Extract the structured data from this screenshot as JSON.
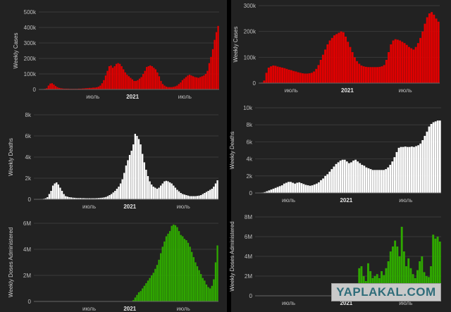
{
  "watermark": "YAPLAKAL.COM",
  "chart_data": [
    {
      "type": "bar",
      "id": "left-cases",
      "ylabel": "Weekly Cases",
      "color": "#e00000",
      "yticks": [
        0,
        100000,
        200000,
        300000,
        400000,
        500000
      ],
      "ytick_labels": [
        "0",
        "100k",
        "200k",
        "300k",
        "400k",
        "500k"
      ],
      "ylim": [
        0,
        500000
      ],
      "xlabels": [
        {
          "label": "июль",
          "x": 0.3
        },
        {
          "label": "2021",
          "x": 0.52,
          "bold": true
        },
        {
          "label": "июль",
          "x": 0.81
        }
      ],
      "values": [
        0,
        1000,
        2000,
        4000,
        8000,
        25000,
        38000,
        40000,
        32000,
        22000,
        15000,
        10000,
        8000,
        6000,
        5000,
        5000,
        5000,
        4000,
        4000,
        4000,
        4000,
        4000,
        5000,
        5000,
        6000,
        7000,
        8000,
        9000,
        10000,
        10000,
        12000,
        12000,
        14000,
        18000,
        25000,
        40000,
        60000,
        90000,
        120000,
        150000,
        155000,
        140000,
        150000,
        165000,
        170000,
        165000,
        150000,
        130000,
        110000,
        95000,
        85000,
        75000,
        65000,
        55000,
        55000,
        60000,
        70000,
        80000,
        100000,
        120000,
        145000,
        150000,
        155000,
        150000,
        140000,
        130000,
        110000,
        85000,
        55000,
        35000,
        25000,
        18000,
        15000,
        15000,
        15000,
        17000,
        20000,
        25000,
        35000,
        45000,
        60000,
        70000,
        80000,
        90000,
        95000,
        90000,
        85000,
        80000,
        78000,
        75000,
        80000,
        85000,
        90000,
        100000,
        120000,
        170000,
        210000,
        260000,
        320000,
        370000,
        410000
      ]
    },
    {
      "type": "bar",
      "id": "right-cases",
      "ylabel": "Weekly Cases",
      "color": "#e00000",
      "yticks": [
        0,
        100000,
        200000,
        300000
      ],
      "ytick_labels": [
        "0",
        "100k",
        "200k",
        "300k"
      ],
      "ylim": [
        0,
        300000
      ],
      "xlabels": [
        {
          "label": "июль",
          "x": 0.18
        },
        {
          "label": "2021",
          "x": 0.49,
          "bold": true
        },
        {
          "label": "июль",
          "x": 0.81
        }
      ],
      "values": [
        0,
        2000,
        10000,
        40000,
        60000,
        65000,
        68000,
        67000,
        64000,
        62000,
        60000,
        58000,
        55000,
        52000,
        50000,
        47000,
        45000,
        42000,
        40000,
        38000,
        37000,
        37000,
        38000,
        40000,
        45000,
        55000,
        70000,
        90000,
        110000,
        130000,
        150000,
        165000,
        175000,
        185000,
        190000,
        195000,
        200000,
        197000,
        180000,
        160000,
        140000,
        120000,
        100000,
        85000,
        75000,
        68000,
        65000,
        63000,
        62000,
        62000,
        62000,
        62000,
        62000,
        63000,
        65000,
        70000,
        90000,
        120000,
        150000,
        165000,
        170000,
        168000,
        165000,
        160000,
        155000,
        148000,
        140000,
        135000,
        130000,
        140000,
        155000,
        175000,
        200000,
        230000,
        255000,
        270000,
        275000,
        265000,
        250000,
        238000
      ]
    },
    {
      "type": "bar",
      "id": "left-deaths",
      "ylabel": "Weekly Deaths",
      "color": "#ffffff",
      "yticks": [
        0,
        2000,
        4000,
        6000,
        8000
      ],
      "ytick_labels": [
        "0",
        "2k",
        "4k",
        "6k",
        "8k"
      ],
      "ylim": [
        0,
        8000
      ],
      "xlabels": [
        {
          "label": "июль",
          "x": 0.3
        },
        {
          "label": "2021",
          "x": 0.52,
          "bold": true
        },
        {
          "label": "июль",
          "x": 0.81
        }
      ],
      "values": [
        0,
        0,
        0,
        0,
        20,
        50,
        100,
        200,
        500,
        800,
        1300,
        1500,
        1600,
        1400,
        1100,
        800,
        500,
        300,
        250,
        200,
        180,
        150,
        140,
        120,
        120,
        120,
        110,
        110,
        100,
        100,
        100,
        100,
        100,
        100,
        110,
        120,
        140,
        150,
        180,
        220,
        300,
        400,
        500,
        650,
        800,
        1000,
        1200,
        1500,
        1900,
        2500,
        3200,
        3700,
        4200,
        4600,
        5200,
        6200,
        6000,
        5700,
        5200,
        4300,
        3500,
        2800,
        2200,
        1700,
        1400,
        1200,
        1100,
        1000,
        1100,
        1300,
        1500,
        1700,
        1750,
        1700,
        1600,
        1500,
        1300,
        1100,
        900,
        750,
        600,
        500,
        450,
        400,
        350,
        300,
        300,
        300,
        300,
        320,
        350,
        400,
        500,
        600,
        700,
        800,
        900,
        1000,
        1200,
        1500,
        1800
      ]
    },
    {
      "type": "bar",
      "id": "right-deaths",
      "ylabel": "Weekly Deaths",
      "color": "#ffffff",
      "yticks": [
        0,
        2000,
        4000,
        6000,
        8000,
        10000
      ],
      "ytick_labels": [
        "0",
        "2k",
        "4k",
        "6k",
        "8k",
        "10k"
      ],
      "ylim": [
        0,
        10000
      ],
      "xlabels": [
        {
          "label": "июль",
          "x": 0.18
        },
        {
          "label": "2021",
          "x": 0.49,
          "bold": true
        },
        {
          "label": "июль",
          "x": 0.81
        }
      ],
      "values": [
        0,
        0,
        0,
        50,
        100,
        200,
        300,
        400,
        500,
        600,
        700,
        800,
        900,
        1100,
        1200,
        1300,
        1300,
        1200,
        1100,
        1200,
        1250,
        1150,
        1050,
        950,
        900,
        850,
        900,
        1000,
        1100,
        1250,
        1500,
        1700,
        2000,
        2200,
        2500,
        2800,
        3100,
        3400,
        3600,
        3800,
        3900,
        3900,
        3700,
        3500,
        3600,
        3800,
        3900,
        3700,
        3500,
        3300,
        3200,
        3000,
        2900,
        2800,
        2700,
        2700,
        2700,
        2700,
        2700,
        2700,
        2800,
        3000,
        3300,
        3700,
        4200,
        4800,
        5300,
        5400,
        5400,
        5450,
        5400,
        5400,
        5450,
        5400,
        5500,
        5600,
        5800,
        6200,
        6700,
        7200,
        7800,
        8100,
        8300,
        8400,
        8500,
        8500
      ]
    },
    {
      "type": "bar",
      "id": "left-doses",
      "ylabel": "Weekly Doses Administered",
      "color": "#2fa800",
      "yticks": [
        0,
        2000000,
        4000000,
        6000000
      ],
      "ytick_labels": [
        "0",
        "2M",
        "4M",
        "6M"
      ],
      "ylim": [
        0,
        6000000
      ],
      "xlabels": [
        {
          "label": "июль",
          "x": 0.3
        },
        {
          "label": "2021",
          "x": 0.52,
          "bold": true
        },
        {
          "label": "июль",
          "x": 0.81
        }
      ],
      "values": [
        0,
        0,
        0,
        0,
        0,
        0,
        0,
        0,
        0,
        0,
        0,
        0,
        0,
        0,
        0,
        0,
        0,
        0,
        0,
        0,
        0,
        0,
        0,
        0,
        0,
        0,
        0,
        0,
        0,
        0,
        0,
        0,
        0,
        0,
        0,
        0,
        0,
        0,
        0,
        0,
        0,
        0,
        0,
        0,
        0,
        0,
        0,
        0,
        0,
        0,
        0,
        0,
        0,
        0,
        100000,
        300000,
        500000,
        700000,
        800000,
        1000000,
        1200000,
        1400000,
        1600000,
        1800000,
        2000000,
        2200000,
        2500000,
        2800000,
        3200000,
        3700000,
        4200000,
        4600000,
        5000000,
        5200000,
        5400000,
        5800000,
        5900000,
        5850000,
        5700000,
        5400000,
        5100000,
        5000000,
        4800000,
        4700000,
        4500000,
        4200000,
        3800000,
        3400000,
        3000000,
        2700000,
        2400000,
        2100000,
        1800000,
        1600000,
        1300000,
        1100000,
        1000000,
        1200000,
        1700000,
        3000000,
        4300000
      ]
    },
    {
      "type": "bar",
      "id": "right-doses",
      "ylabel": "Weekly Doses Administered",
      "color": "#2fa800",
      "yticks": [
        0,
        2000000,
        4000000,
        6000000,
        8000000
      ],
      "ytick_labels": [
        "0",
        "2M",
        "4M",
        "6M",
        "8M"
      ],
      "ylim": [
        0,
        8000000
      ],
      "xlabels": [
        {
          "label": "июль",
          "x": 0.18
        },
        {
          "label": "2021",
          "x": 0.49,
          "bold": true
        },
        {
          "label": "июль",
          "x": 0.81
        }
      ],
      "values": [
        0,
        0,
        0,
        0,
        0,
        0,
        0,
        0,
        0,
        0,
        0,
        0,
        0,
        0,
        0,
        0,
        0,
        0,
        0,
        0,
        0,
        0,
        0,
        0,
        0,
        0,
        0,
        0,
        0,
        0,
        0,
        0,
        0,
        0,
        0,
        0,
        0,
        0,
        0,
        0,
        0,
        0,
        0,
        0,
        0,
        0,
        2800000,
        3000000,
        2000000,
        1500000,
        3300000,
        2500000,
        1800000,
        2000000,
        2200000,
        1800000,
        2500000,
        2100000,
        2800000,
        3500000,
        4500000,
        5000000,
        5600000,
        5000000,
        4000000,
        7000000,
        4500000,
        3000000,
        3800000,
        2800000,
        2200000,
        1800000,
        2600000,
        3500000,
        4000000,
        2400000,
        2000000,
        1900000,
        3000000,
        6200000,
        5800000,
        6000000,
        5500000
      ]
    }
  ]
}
